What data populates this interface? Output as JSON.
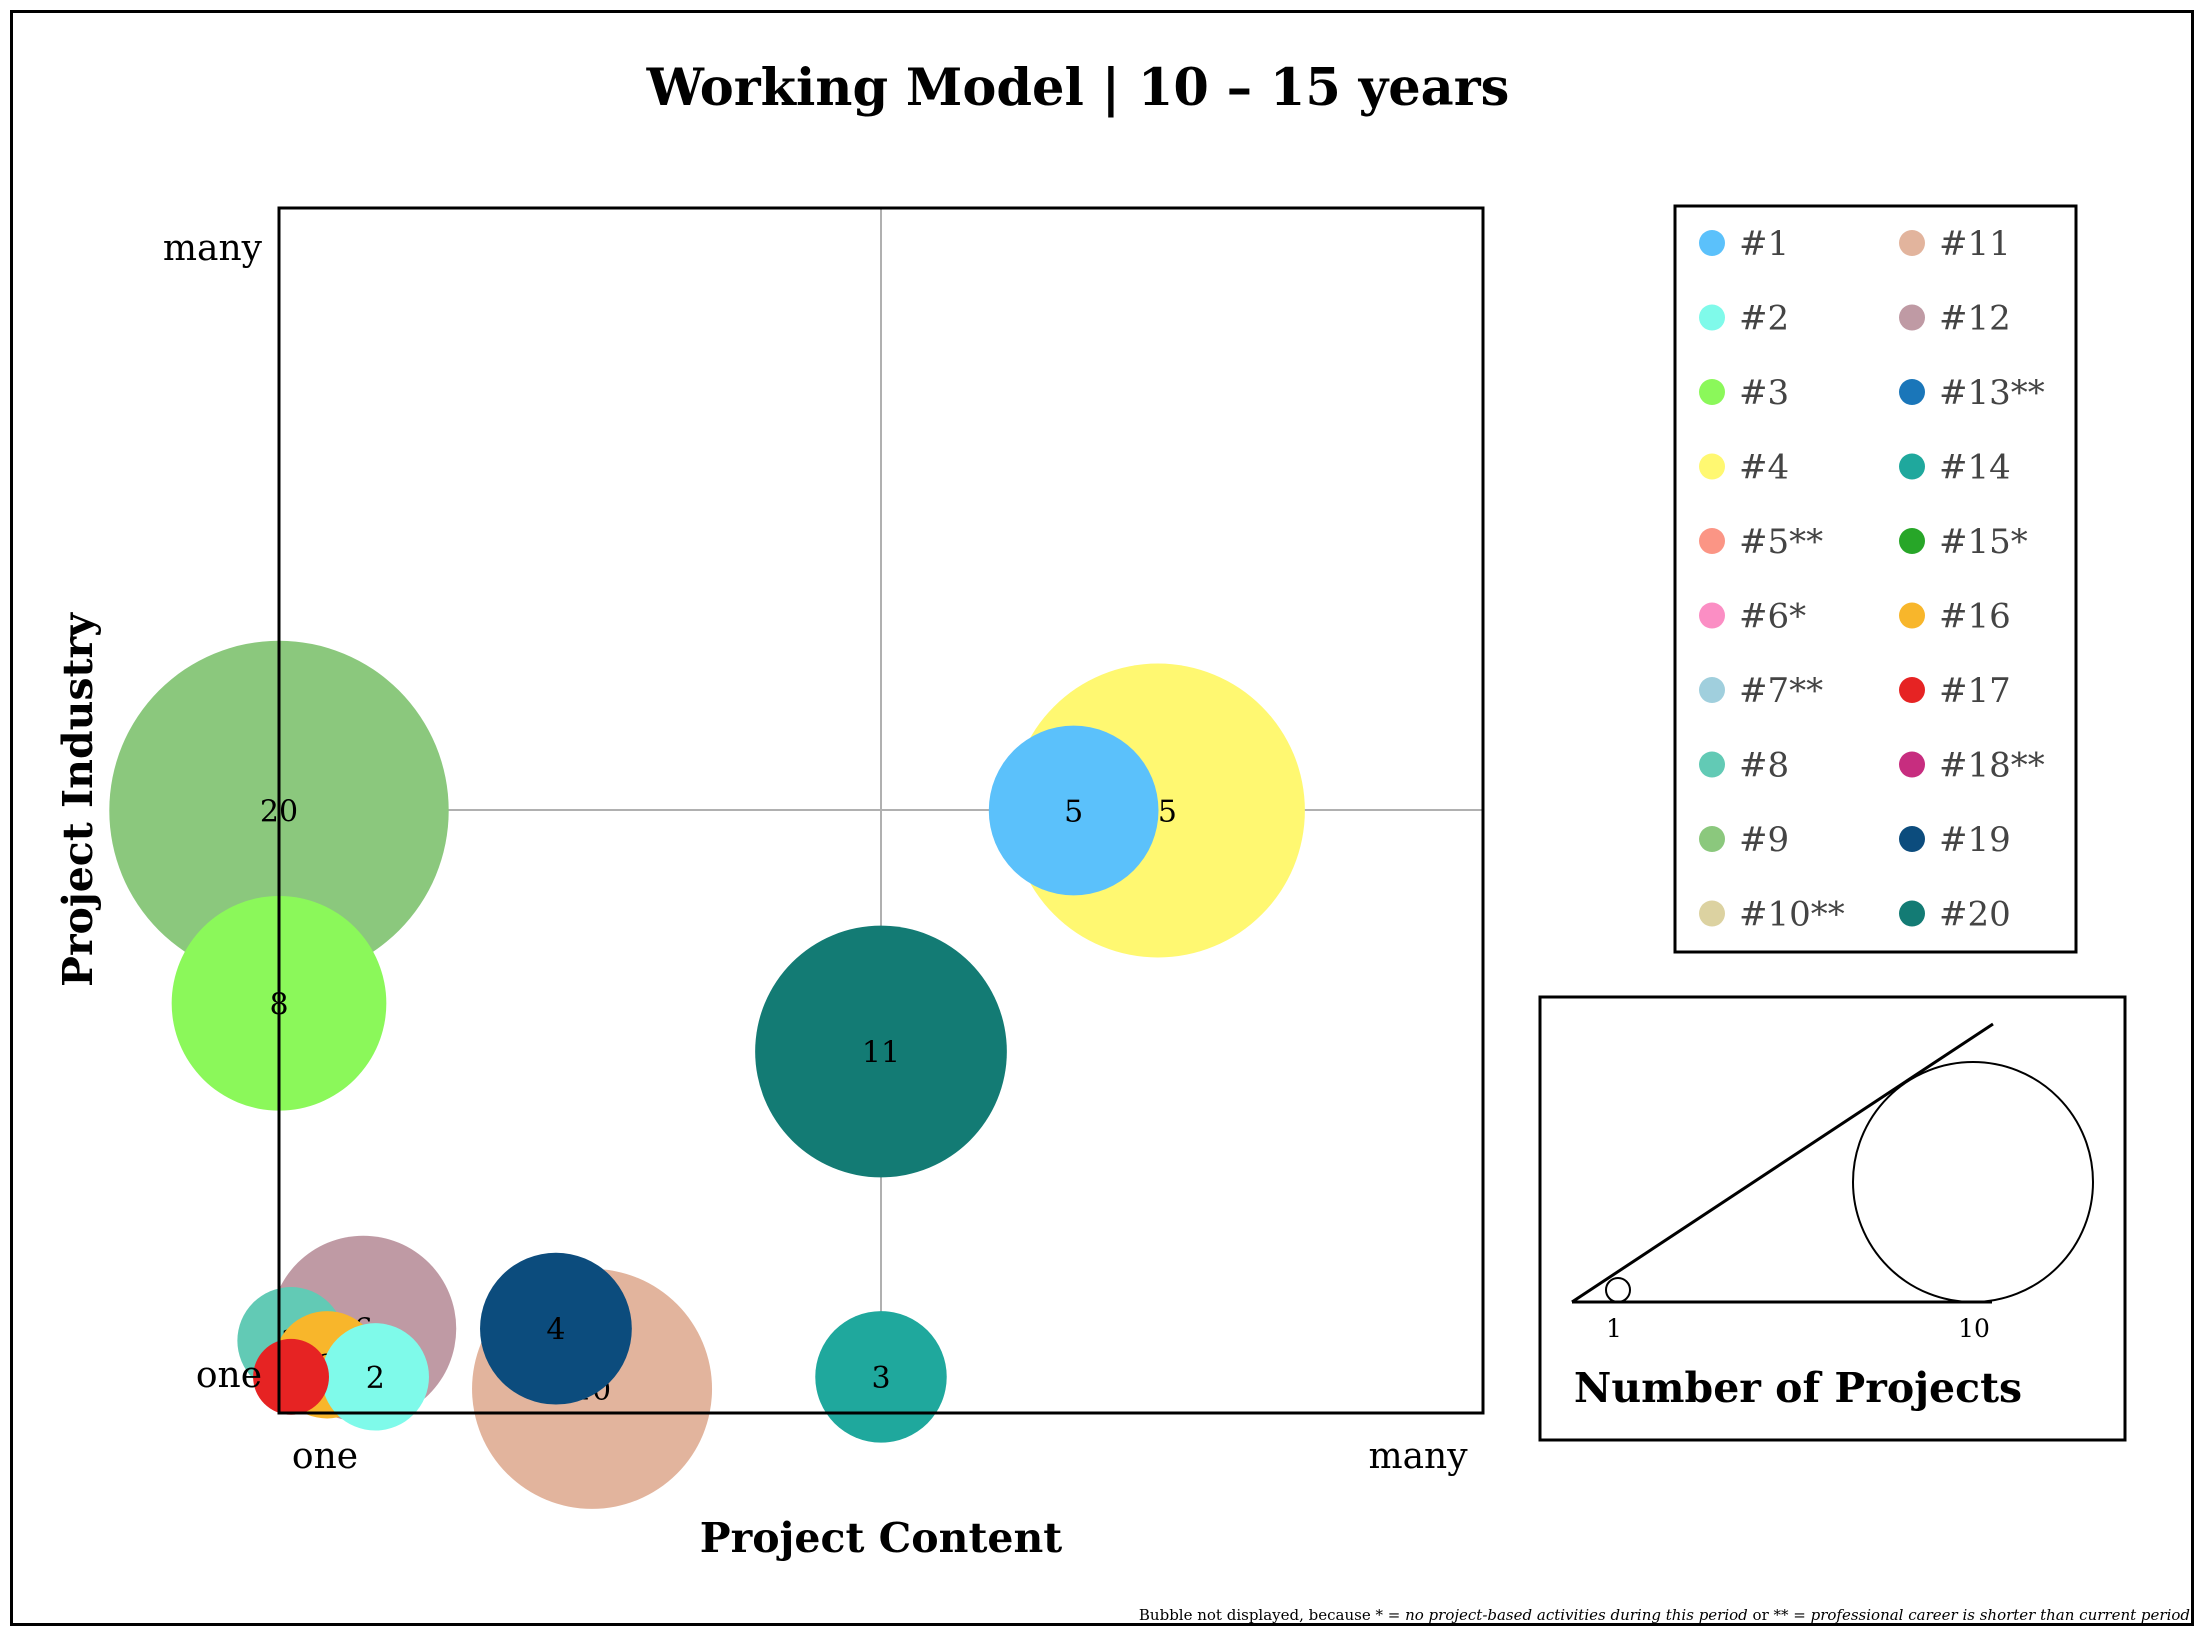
{
  "chart_data": {
    "type": "scatter",
    "title": "Working Model | 10 – 15 years",
    "xlabel": "Project Content",
    "ylabel": "Project Industry",
    "x_ticks": [
      "one",
      "many"
    ],
    "y_ticks": [
      "one",
      "many"
    ],
    "xlim": [
      0,
      1
    ],
    "ylim": [
      0,
      1
    ],
    "grid": "center cross",
    "legend_position": "right",
    "legend": [
      {
        "label": "#1",
        "color": "#5bc1fb"
      },
      {
        "label": "#2",
        "color": "#7ffaea"
      },
      {
        "label": "#3",
        "color": "#8bf85a"
      },
      {
        "label": "#4",
        "color": "#fff871"
      },
      {
        "label": "#5**",
        "color": "#fb9585"
      },
      {
        "label": "#6*",
        "color": "#fb8ec4"
      },
      {
        "label": "#7**",
        "color": "#a0cfdd"
      },
      {
        "label": "#8",
        "color": "#62cab5"
      },
      {
        "label": "#9",
        "color": "#8bc87d"
      },
      {
        "label": "#10**",
        "color": "#dcd2a1"
      },
      {
        "label": "#11",
        "color": "#e2b49d"
      },
      {
        "label": "#12",
        "color": "#bf9aa4"
      },
      {
        "label": "#13**",
        "color": "#1a76b9"
      },
      {
        "label": "#14",
        "color": "#1fa89d"
      },
      {
        "label": "#15*",
        "color": "#27a628"
      },
      {
        "label": "#16",
        "color": "#f8b62b"
      },
      {
        "label": "#17",
        "color": "#e62323"
      },
      {
        "label": "#18**",
        "color": "#c72d7f"
      },
      {
        "label": "#19",
        "color": "#0c4c7d"
      },
      {
        "label": "#20",
        "color": "#137b74"
      }
    ],
    "bubbles": [
      {
        "series": "#9",
        "x": 0.0,
        "y": 0.5,
        "value": 20,
        "label": "20",
        "color": "#8bc87d"
      },
      {
        "series": "#4",
        "x": 0.73,
        "y": 0.5,
        "value": 15,
        "label": "15",
        "color": "#fff871"
      },
      {
        "series": "#1",
        "x": 0.66,
        "y": 0.5,
        "value": 5,
        "label": "5",
        "color": "#5bc1fb"
      },
      {
        "series": "#3",
        "x": 0.0,
        "y": 0.34,
        "value": 8,
        "label": "8",
        "color": "#8bf85a"
      },
      {
        "series": "#20",
        "x": 0.5,
        "y": 0.3,
        "value": 11,
        "label": "11",
        "color": "#137b74"
      },
      {
        "series": "#11",
        "x": 0.26,
        "y": 0.02,
        "value": 10,
        "label": "10",
        "color": "#e2b49d"
      },
      {
        "series": "#12",
        "x": 0.07,
        "y": 0.07,
        "value": 6,
        "label": "6",
        "color": "#bf9aa4"
      },
      {
        "series": "#19",
        "x": 0.23,
        "y": 0.07,
        "value": 4,
        "label": "4",
        "color": "#0c4c7d"
      },
      {
        "series": "#14",
        "x": 0.5,
        "y": 0.03,
        "value": 3,
        "label": "3",
        "color": "#1fa89d"
      },
      {
        "series": "#8",
        "x": 0.01,
        "y": 0.06,
        "value": 2,
        "label": "2",
        "color": "#62cab5"
      },
      {
        "series": "#16",
        "x": 0.04,
        "y": 0.04,
        "value": 2,
        "label": "2",
        "color": "#f8b62b"
      },
      {
        "series": "#2",
        "x": 0.08,
        "y": 0.03,
        "value": 2,
        "label": "2",
        "color": "#7ffaea"
      },
      {
        "series": "#17",
        "x": 0.01,
        "y": 0.03,
        "value": 1,
        "label": "",
        "color": "#e62323"
      }
    ],
    "size_legend": {
      "title": "Number of Projects",
      "values": [
        1,
        10
      ],
      "labels": [
        "1",
        "10"
      ]
    },
    "footnote": {
      "prefix": "Bubble not displayed, because * = ",
      "note1": "no project-based activities during this period",
      "middle": " or ** = ",
      "note2": "professional career is shorter than current period"
    }
  }
}
